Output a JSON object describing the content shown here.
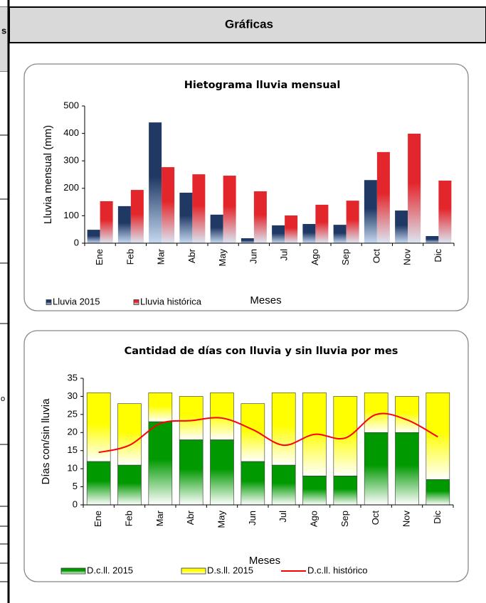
{
  "header": {
    "title": "Gráficas"
  },
  "left_column": {
    "fragments": [
      "s",
      "o"
    ]
  },
  "chart_data": [
    {
      "type": "bar",
      "title": "Hietograma lluvia mensual",
      "x_label": "Meses",
      "y_label": "Lluvia mensual (mm)",
      "categories": [
        "Ene",
        "Feb",
        "Mar",
        "Abr",
        "May",
        "Jun",
        "Jul",
        "Ago",
        "Sep",
        "Oct",
        "Nov",
        "Dic"
      ],
      "series": [
        {
          "name": "Lluvia 2015",
          "color": "#1f3864",
          "values": [
            49,
            135,
            440,
            184,
            104,
            18,
            65,
            70,
            67,
            230,
            119,
            26
          ]
        },
        {
          "name": "Lluvia histórica",
          "color": "#e3262b",
          "values": [
            153,
            194,
            277,
            251,
            246,
            189,
            101,
            140,
            155,
            332,
            399,
            228
          ]
        }
      ],
      "ylim": [
        0,
        500
      ],
      "yticks": [
        0,
        100,
        200,
        300,
        400,
        500
      ]
    },
    {
      "type": "bar",
      "stacked": true,
      "title": "Cantidad de días con lluvia y sin lluvia por mes",
      "x_label": "Meses",
      "y_label": "Días con/sin lluvia",
      "categories": [
        "Ene",
        "Feb",
        "Mar",
        "Abr",
        "May",
        "Jun",
        "Jul",
        "Ago",
        "Sep",
        "Oct",
        "Nov",
        "Dic"
      ],
      "series": [
        {
          "name": "D.c.ll. 2015",
          "color": "#009900",
          "values": [
            12,
            11,
            23,
            18,
            18,
            12,
            11,
            8,
            8,
            20,
            20,
            7
          ]
        },
        {
          "name": "D.s.ll. 2015",
          "color": "#ffff00",
          "values": [
            19,
            17,
            8,
            12,
            13,
            16,
            20,
            23,
            22,
            11,
            10,
            24
          ]
        },
        {
          "name": "D.c.ll. histórico",
          "color": "#ff0000",
          "type": "line",
          "values": [
            14.5,
            16.5,
            22.5,
            23.3,
            24,
            20.8,
            16.5,
            19.5,
            18.5,
            25,
            23.5,
            18.8
          ]
        }
      ],
      "ylim": [
        0,
        35
      ],
      "yticks": [
        0,
        5,
        10,
        15,
        20,
        25,
        30,
        35
      ]
    }
  ]
}
